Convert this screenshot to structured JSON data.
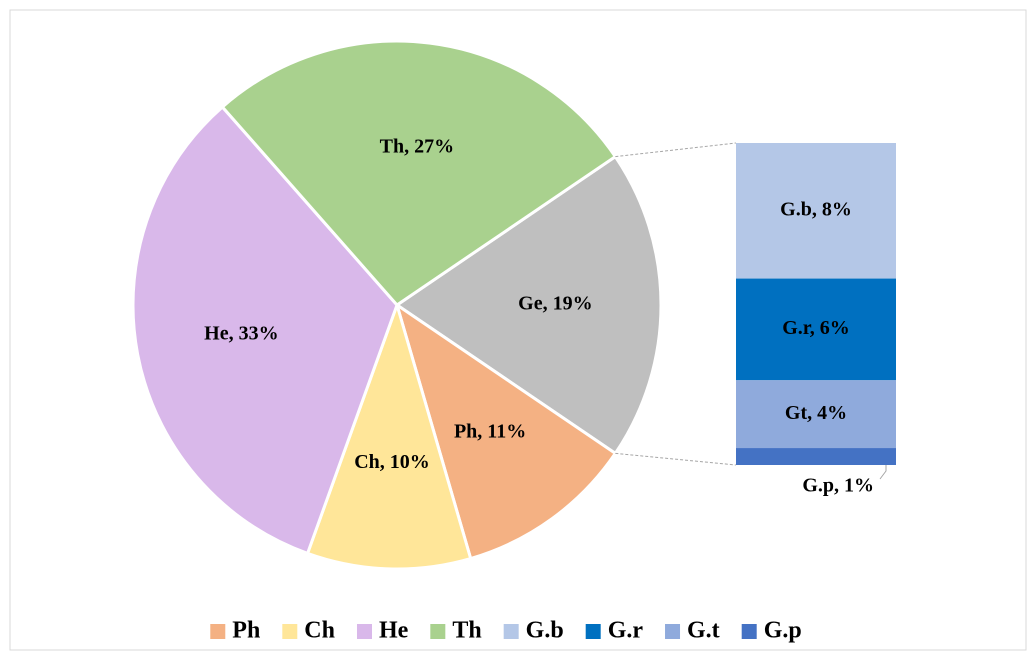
{
  "chart_data": {
    "type": "pie",
    "categories": [
      "Ph",
      "Ch",
      "He",
      "Th",
      "G.b",
      "G.r",
      "G.t",
      "G.p"
    ],
    "values": [
      11,
      10,
      33,
      27,
      8,
      6,
      4,
      1
    ],
    "value_labels": [
      "Ph, 11%",
      "Ch, 10%",
      "He, 33%",
      "Th, 27%",
      "G.b, 8%",
      "G.r, 6%",
      "Gt, 4%",
      "G.p, 1%"
    ],
    "colors": [
      "#f4b183",
      "#ffe699",
      "#d9b8ea",
      "#a9d18e",
      "#b4c7e7",
      "#0070c0",
      "#8faadc",
      "#4472c4"
    ],
    "other": {
      "value": 19,
      "value_label": "Ge, 19%",
      "color": "#bfbfbf",
      "count": 4
    }
  }
}
